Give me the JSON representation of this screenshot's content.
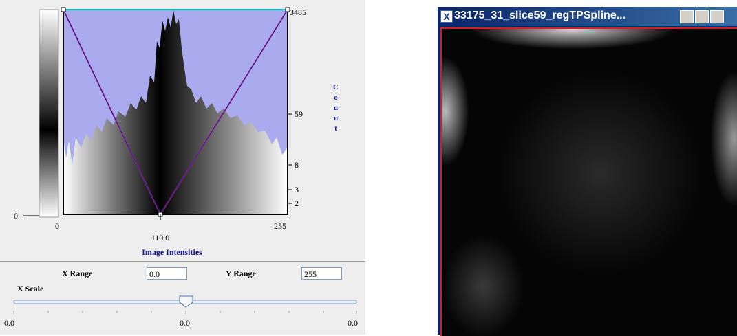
{
  "histogram": {
    "y_ticks": [
      "3485",
      "59",
      "8",
      "3",
      "2"
    ],
    "y_zero": "0",
    "x_ticks": [
      "0",
      "110.0",
      "255"
    ],
    "x_label": "Image Intensities",
    "y_label": [
      "C",
      "o",
      "u",
      "n",
      "t"
    ]
  },
  "controls": {
    "x_range_label": "X Range",
    "x_range_value": "0.0",
    "y_range_label": "Y Range",
    "y_range_value": "255",
    "x_scale_label": "X Scale",
    "scale_labels": [
      "0.0",
      "0.0",
      "0.0"
    ]
  },
  "image_window": {
    "title": "33175_31_slice59_regTPSpline..."
  }
}
